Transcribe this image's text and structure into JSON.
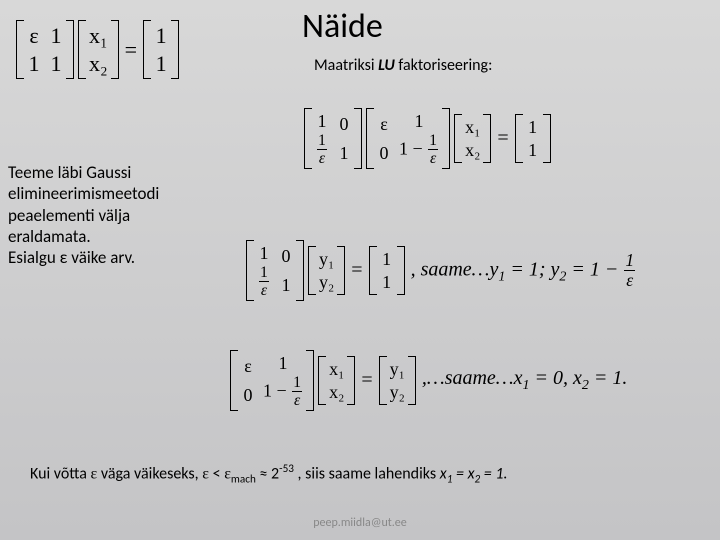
{
  "title": "Näide",
  "subtitle_pre": "Maatriksi ",
  "subtitle_em": "LU",
  "subtitle_post": "  faktoriseering:",
  "paragraph": "Teeme läbi Gaussi elimineerimismeetodi peaelementi välja eraldamata.\nEsialgu ε väike arv.",
  "eq_topleft": {
    "A": [
      [
        "ε",
        "1"
      ],
      [
        "1",
        "1"
      ]
    ],
    "x": [
      [
        "x₁"
      ],
      [
        "x₂"
      ]
    ],
    "b": [
      [
        "1"
      ],
      [
        "1"
      ]
    ]
  },
  "eq_lu": {
    "L": [
      [
        "1",
        "0"
      ],
      [
        "1/ε",
        "1"
      ]
    ],
    "U": [
      [
        "ε",
        "1"
      ],
      [
        "0",
        "1−1/ε"
      ]
    ],
    "x": [
      [
        "x₁"
      ],
      [
        "x₂"
      ]
    ],
    "b": [
      [
        "1"
      ],
      [
        "1"
      ]
    ]
  },
  "eq_y": {
    "L": [
      [
        "1",
        "0"
      ],
      [
        "1/ε",
        "1"
      ]
    ],
    "y": [
      [
        "y₁"
      ],
      [
        "y₂"
      ]
    ],
    "b": [
      [
        "1"
      ],
      [
        "1"
      ]
    ],
    "tail_a": ", saame…y",
    "tail_b": " = 1; y",
    "tail_c": " = 1 − ",
    "one": "1",
    "eps": "ε"
  },
  "eq_x": {
    "U": [
      [
        "ε",
        "1"
      ],
      [
        "0",
        "1−1/ε"
      ]
    ],
    "x": [
      [
        "x₁"
      ],
      [
        "x₂"
      ]
    ],
    "y": [
      [
        "y₁"
      ],
      [
        "y₂"
      ]
    ],
    "tail_a": ",…saame…x",
    "tail_b": " = 0, x",
    "tail_c": " = 1."
  },
  "bottom_a": "Kui võtta ",
  "bottom_b": "  väga väikeseks,  ",
  "bottom_c": " < ",
  "bottom_d": " ≈ 2",
  "bottom_e": " ,   siis saame lahendiks   ",
  "bottom_f": " = x",
  "bottom_g": " = 1.",
  "eps_txt": "ε",
  "eps_mach": "mach",
  "exp53": "-53",
  "x1": "x",
  "sub1": "1",
  "sub2": "2",
  "footer": "peep.miidla@ut.ee",
  "colors": {
    "bg_top": "#d8d8d8",
    "bg_bottom": "#c4c4c6",
    "text": "#000000",
    "footer": "#888888"
  },
  "fontsizes": {
    "title": 34,
    "subtitle": 16,
    "body": 17,
    "math": 20,
    "footer": 12
  }
}
